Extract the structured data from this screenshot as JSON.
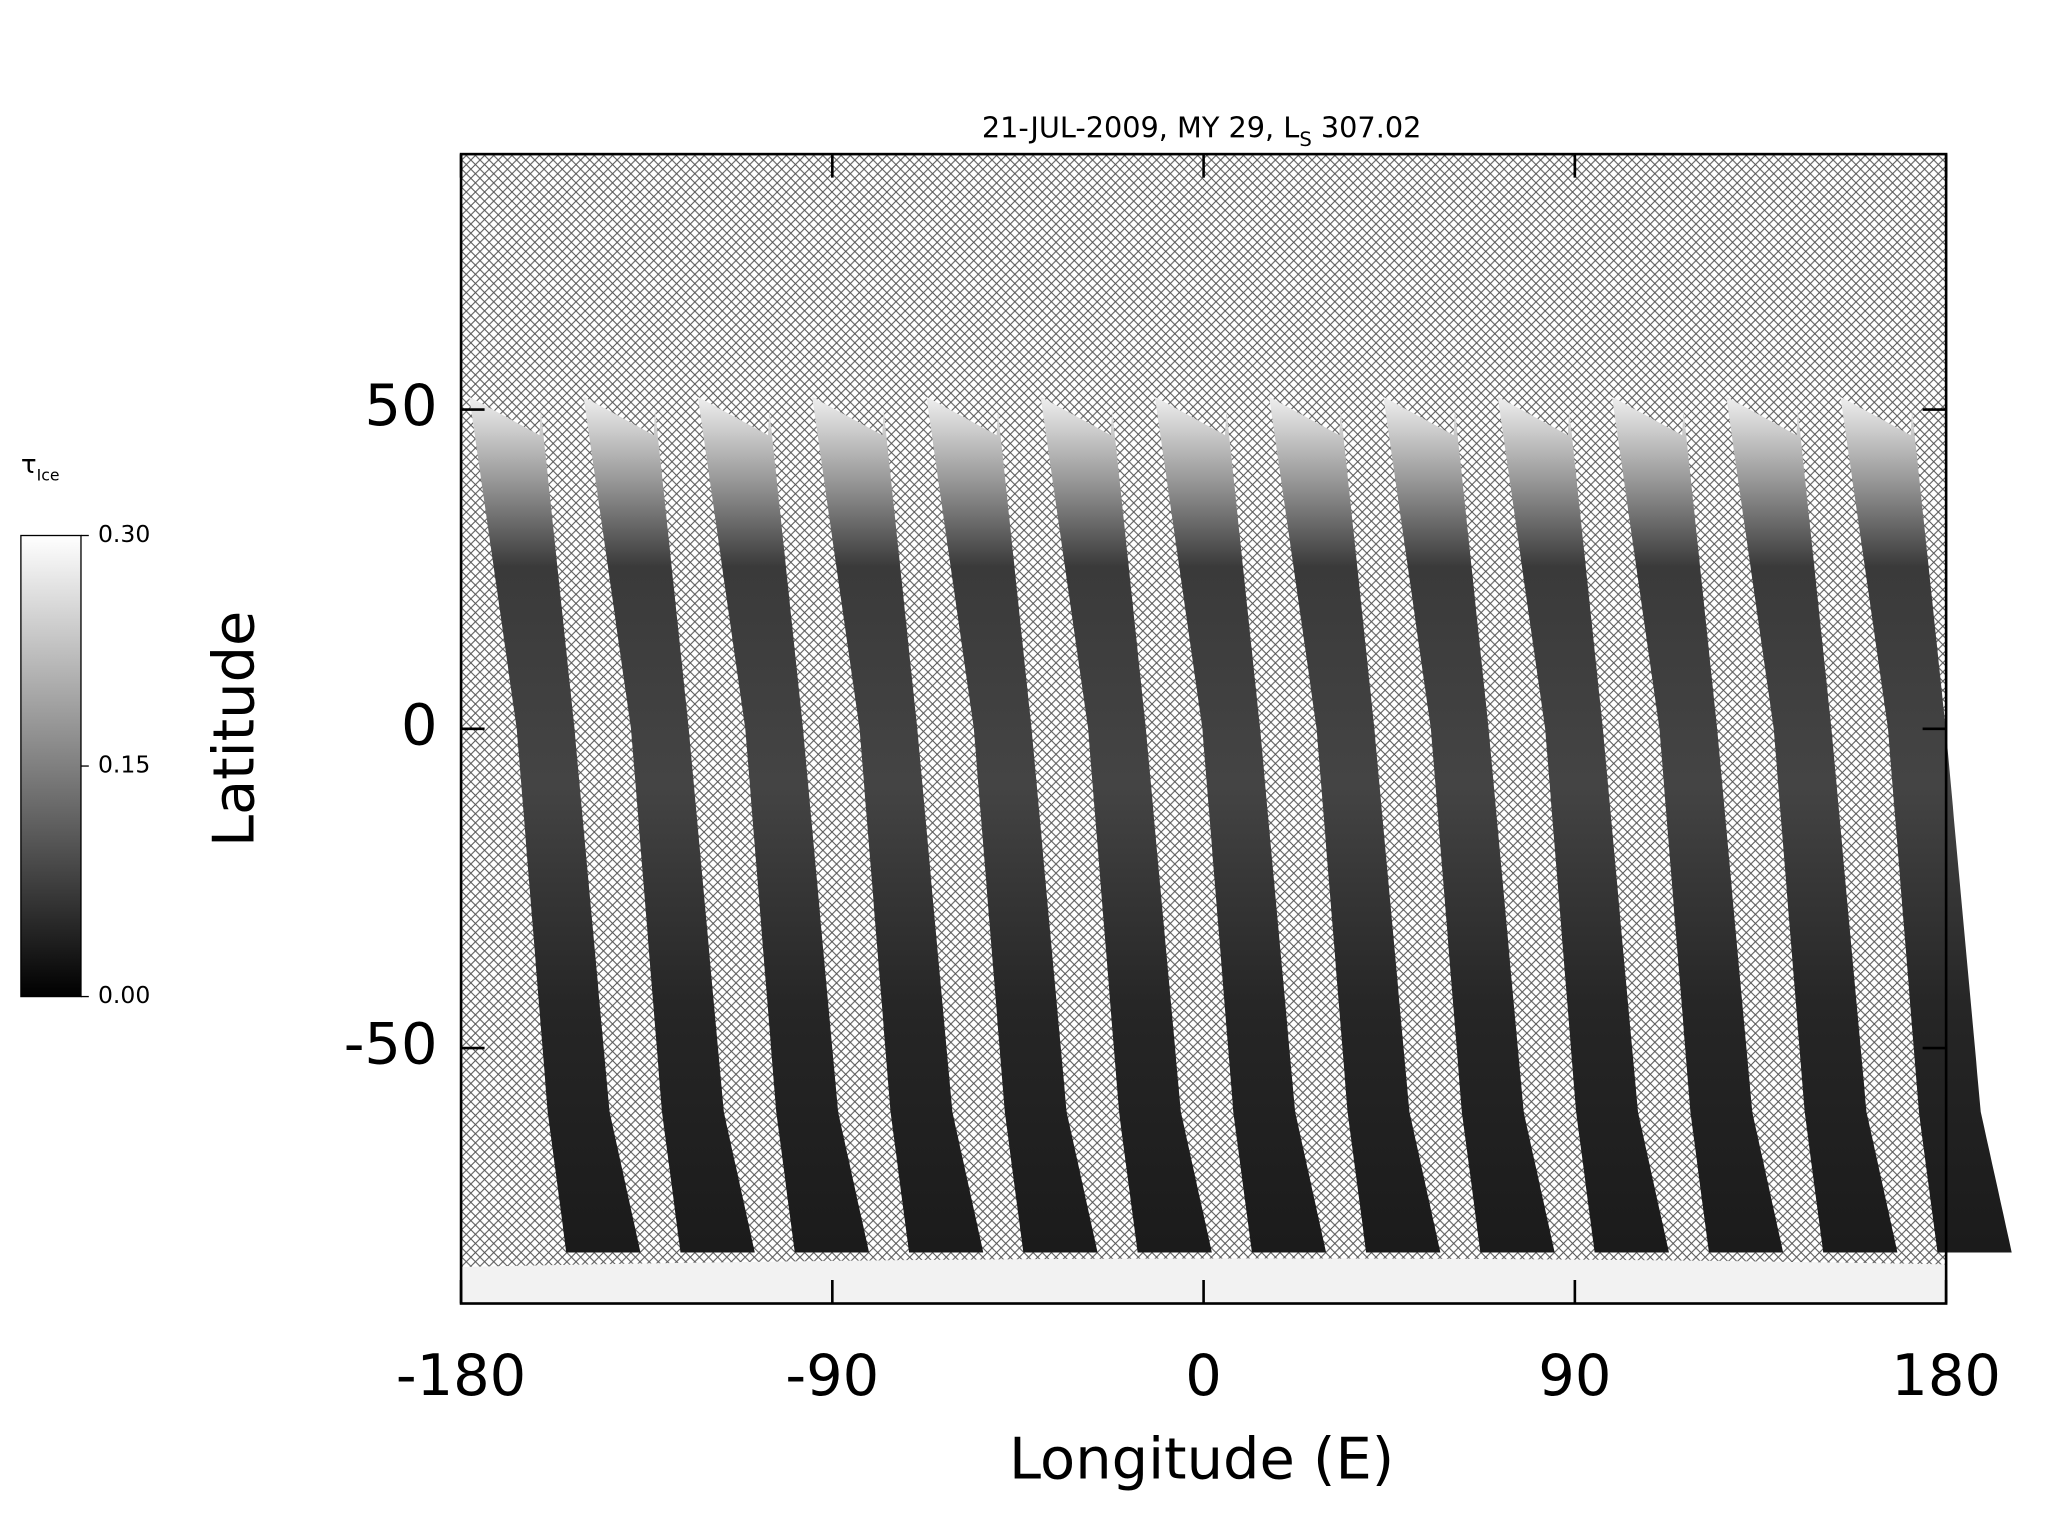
{
  "chart_data": {
    "type": "swath-map",
    "title": {
      "text": "21-JUL-2009, MY 29,  L",
      "subscript": "S",
      "suffix": " 307.02"
    },
    "xlabel": "Longitude (E)",
    "ylabel": "Latitude",
    "xlim": [
      -180,
      180
    ],
    "xticks": [
      -180,
      -90,
      0,
      90,
      180
    ],
    "ylim": [
      -90,
      90
    ],
    "yticks": [
      -50,
      0,
      50
    ],
    "swaths": [
      -159.5,
      -131.8,
      -104.1,
      -76.4,
      -48.7,
      -21.0,
      6.7,
      34.4,
      62.1,
      89.8,
      117.5,
      145.2,
      172.9
    ],
    "colorbar": {
      "label": "τ",
      "label_subscript": "Ice",
      "range": [
        0,
        0.3
      ],
      "ticks": [
        {
          "value": 0,
          "label": "0.00"
        },
        {
          "value": 0.15,
          "label": "0.15"
        },
        {
          "value": 0.3,
          "label": "0.30"
        }
      ],
      "colors": [
        "#000000",
        "#ffffff"
      ]
    }
  }
}
